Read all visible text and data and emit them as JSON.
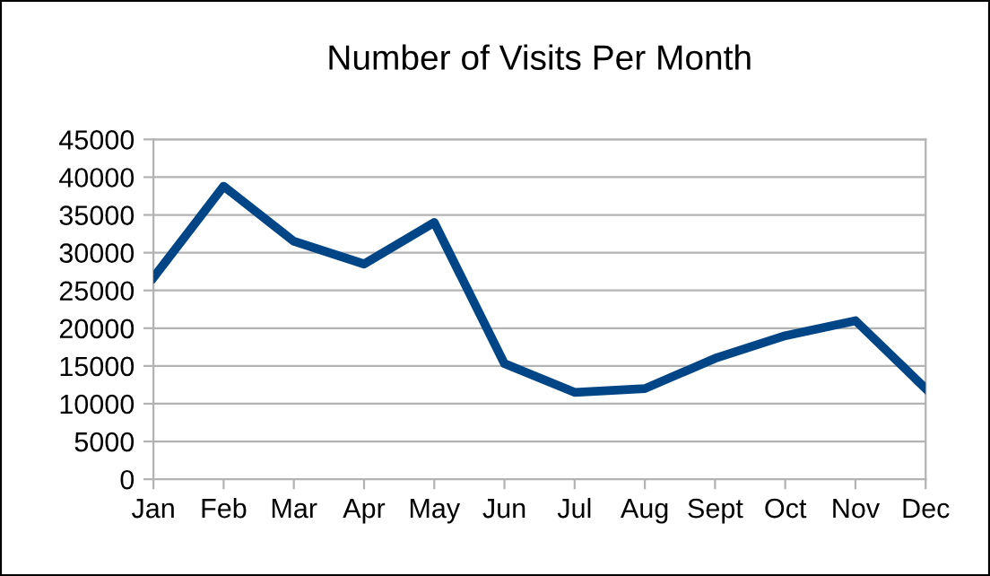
{
  "chart_data": {
    "type": "line",
    "title": "Number of Visits Per Month",
    "categories": [
      "Jan",
      "Feb",
      "Mar",
      "Apr",
      "May",
      "Jun",
      "Jul",
      "Aug",
      "Sept",
      "Oct",
      "Nov",
      "Dec"
    ],
    "series": [
      {
        "color": "#004586",
        "values": [
          26700,
          38800,
          31500,
          28500,
          34000,
          15300,
          11500,
          12000,
          16000,
          19000,
          21000,
          12000
        ]
      }
    ],
    "ylim": [
      0,
      45000
    ],
    "yticks": [
      0,
      5000,
      10000,
      15000,
      20000,
      25000,
      30000,
      35000,
      40000,
      45000
    ],
    "grid": "y",
    "marker": "none",
    "line_style": "solid"
  }
}
